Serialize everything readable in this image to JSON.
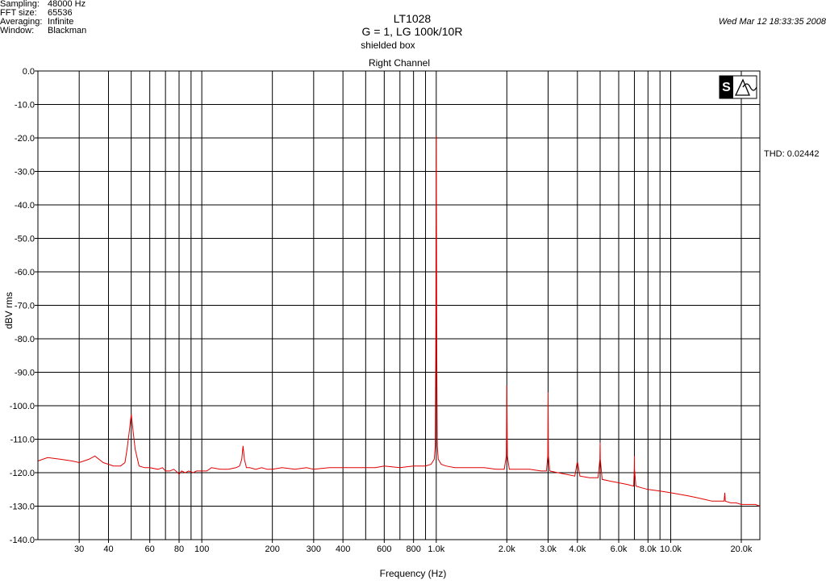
{
  "info": [
    {
      "key": "Sampling:",
      "value": "48000 Hz"
    },
    {
      "key": "FFT size:",
      "value": "65536"
    },
    {
      "key": "Averaging:",
      "value": "Infinite"
    },
    {
      "key": "Window:",
      "value": "Blackman"
    }
  ],
  "timestamp": "Wed Mar 12 18:33:35 2008",
  "title": "LT1028",
  "subtitle": "G = 1, LG 100k/10R",
  "subtitle2": "shielded box",
  "channel": "Right Channel",
  "thd": "THD: 0.02442",
  "colors": {
    "trace": "#e00000",
    "grid": "#000000",
    "background": "#ffffff"
  },
  "logo_icon": "spectrum-analyzer-logo-icon",
  "chart_data": {
    "type": "line",
    "title": "LT1028",
    "xlabel": "Frequency (Hz)",
    "ylabel": "dBV rms",
    "xscale": "log",
    "xlim": [
      20,
      24000
    ],
    "ylim": [
      -140,
      0
    ],
    "grid": true,
    "y_ticks": [
      0,
      -10,
      -20,
      -30,
      -40,
      -50,
      -60,
      -70,
      -80,
      -90,
      -100,
      -110,
      -120,
      -130,
      -140
    ],
    "y_tick_labels": [
      "0.0",
      "-10.0",
      "-20.0",
      "-30.0",
      "-40.0",
      "-50.0",
      "-60.0",
      "-70.0",
      "-80.0",
      "-90.0",
      "-100.0",
      "-110.0",
      "-120.0",
      "-130.0",
      "-140.0"
    ],
    "x_ticks": [
      30,
      40,
      60,
      80,
      100,
      200,
      300,
      400,
      600,
      800,
      1000,
      2000,
      3000,
      4000,
      6000,
      8000,
      10000,
      20000
    ],
    "x_tick_labels": [
      "30",
      "40",
      "60",
      "80",
      "100",
      "200",
      "300",
      "400",
      "600",
      "800",
      "1.0k",
      "2.0k",
      "3.0k",
      "4.0k",
      "6.0k",
      "8.0k",
      "10.0k",
      "20.0k"
    ],
    "x_grid": [
      30,
      40,
      50,
      60,
      70,
      80,
      90,
      100,
      200,
      300,
      400,
      500,
      600,
      700,
      800,
      900,
      1000,
      2000,
      3000,
      4000,
      5000,
      6000,
      7000,
      8000,
      9000,
      10000,
      20000
    ],
    "series": [
      {
        "x": [
          20,
          22,
          25,
          28,
          30,
          33,
          35,
          38,
          40,
          42,
          45,
          47,
          48,
          49,
          50,
          51,
          52,
          54,
          57,
          60,
          65,
          68,
          70,
          73,
          76,
          79,
          80,
          82,
          85,
          88,
          92,
          95,
          100,
          105,
          110,
          120,
          130,
          140,
          145,
          148,
          150,
          152,
          155,
          160,
          170,
          180,
          190,
          200,
          220,
          250,
          280,
          300,
          350,
          400,
          450,
          500,
          550,
          600,
          700,
          800,
          900,
          950,
          980,
          990,
          995,
          998,
          1000,
          1002,
          1005,
          1010,
          1020,
          1050,
          1100,
          1200,
          1400,
          1600,
          1800,
          1950,
          1990,
          2000,
          2010,
          2050,
          2200,
          2500,
          2800,
          2950,
          2990,
          3000,
          3010,
          3050,
          3300,
          3600,
          3900,
          3990,
          4000,
          4010,
          4100,
          4500,
          4900,
          4990,
          5000,
          5010,
          5100,
          5500,
          6000,
          6500,
          6950,
          6990,
          7000,
          7010,
          7100,
          7500,
          8000,
          9000,
          10000,
          11000,
          12000,
          13000,
          14000,
          15000,
          16000,
          16900,
          17000,
          17100,
          18000,
          19000,
          20000,
          21000,
          22000,
          23000,
          24000
        ],
        "y": [
          -116.5,
          -115.5,
          -116,
          -116.5,
          -117,
          -116,
          -115,
          -117,
          -117.5,
          -118,
          -118,
          -117,
          -113,
          -108,
          -102.5,
          -108,
          -113,
          -118,
          -118.5,
          -118.5,
          -119,
          -118.5,
          -119.5,
          -119.5,
          -119,
          -120,
          -120.5,
          -119.5,
          -120,
          -119.5,
          -120,
          -119.5,
          -119.5,
          -119.5,
          -118.5,
          -119,
          -119,
          -118.5,
          -118,
          -116,
          -112,
          -116,
          -118.5,
          -118.5,
          -119,
          -118.5,
          -119,
          -119,
          -118.5,
          -119,
          -118.5,
          -119,
          -118.5,
          -118.5,
          -118.5,
          -118.5,
          -118.5,
          -118,
          -118.5,
          -118,
          -118,
          -117.5,
          -116,
          -112,
          -85,
          -45,
          -19.5,
          -45,
          -85,
          -112,
          -116,
          -117.5,
          -118,
          -118.5,
          -118.5,
          -118.5,
          -119,
          -119,
          -115,
          -94,
          -115,
          -119,
          -119,
          -119,
          -119.5,
          -119.5,
          -115,
          -96,
          -115,
          -119.5,
          -120,
          -120.5,
          -121,
          -117,
          -117,
          -117,
          -121,
          -121.5,
          -121.5,
          -116,
          -111,
          -116,
          -122,
          -122.5,
          -123,
          -123.5,
          -124,
          -119,
          -115,
          -119,
          -124,
          -124.5,
          -125,
          -125.5,
          -126,
          -126.5,
          -127,
          -127.5,
          -128,
          -128.5,
          -128.5,
          -128.5,
          -126,
          -128.5,
          -129,
          -129,
          -129.5,
          -129.5,
          -129.5,
          -129.5,
          -130
        ]
      }
    ]
  },
  "axis_label_x": "Frequency (Hz)",
  "axis_label_y": "dBV rms"
}
